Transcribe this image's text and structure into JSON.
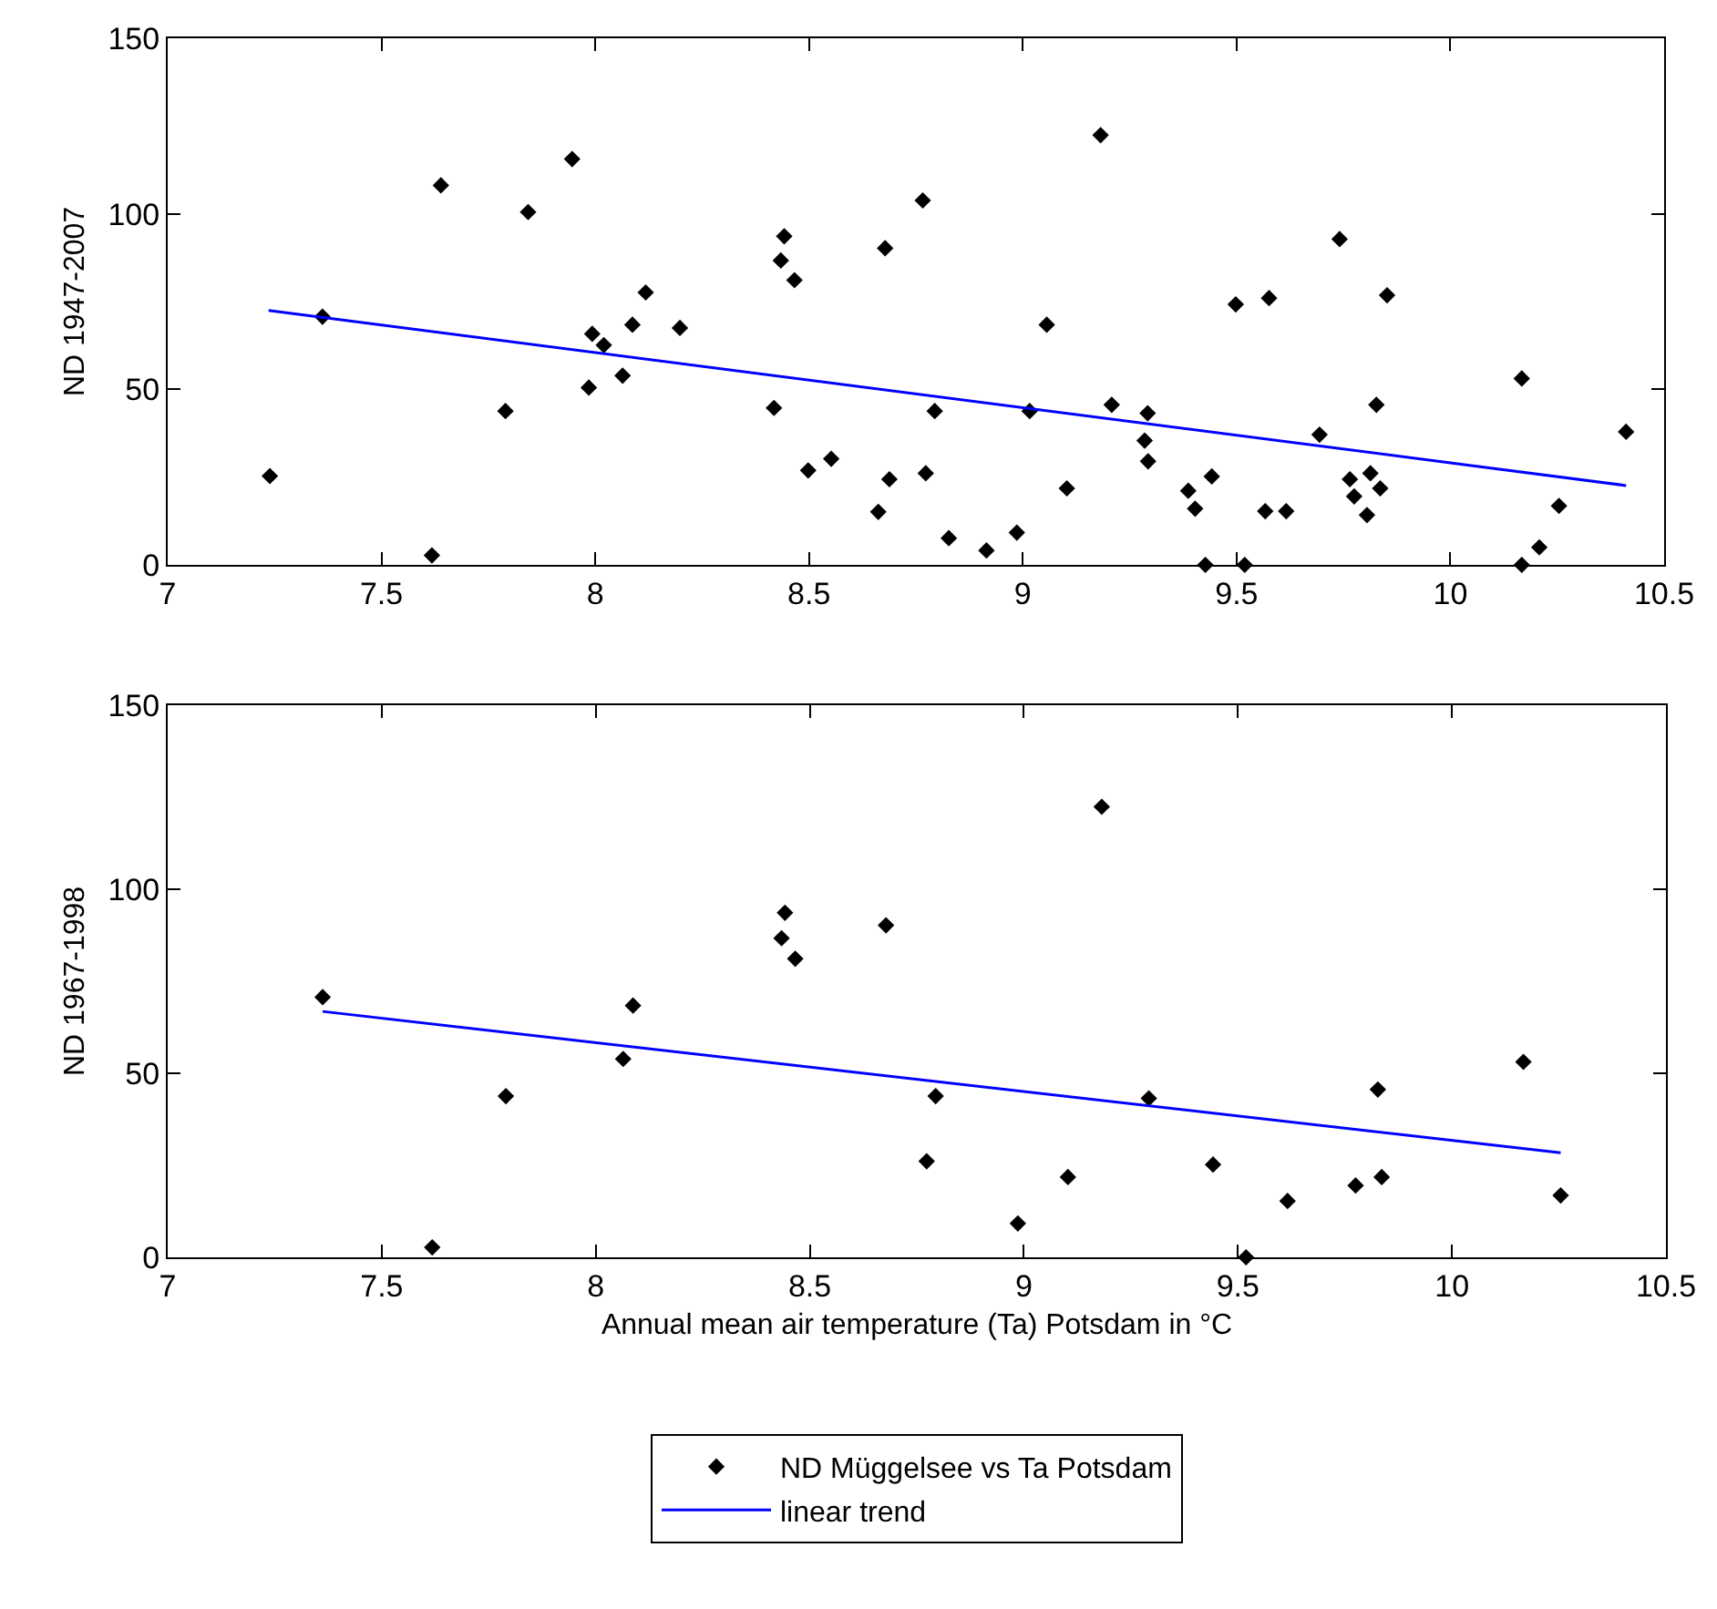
{
  "chart_data": [
    {
      "type": "scatter",
      "ylabel": "ND 1947-2007",
      "xlim": [
        7,
        10.5
      ],
      "xticks": [
        7,
        7.5,
        8,
        8.5,
        9,
        9.5,
        10,
        10.5
      ],
      "ylim": [
        0,
        150
      ],
      "yticks": [
        0,
        50,
        100,
        150
      ],
      "grid": false,
      "series": [
        {
          "marker": "diamond",
          "color": "#000000",
          "x": [
            7.239,
            7.362,
            7.639,
            7.618,
            7.79,
            7.843,
            7.946,
            7.993,
            7.985,
            8.02,
            8.064,
            8.087,
            8.118,
            8.198,
            8.418,
            8.434,
            8.442,
            8.466,
            8.498,
            8.552,
            8.662,
            8.678,
            8.688,
            8.766,
            8.794,
            8.773,
            8.827,
            8.915,
            8.986,
            9.016,
            9.056,
            9.103,
            9.182,
            9.208,
            9.292,
            9.285,
            9.293,
            9.387,
            9.403,
            9.427,
            9.442,
            9.498,
            9.519,
            9.567,
            9.576,
            9.616,
            9.694,
            9.741,
            9.765,
            9.775,
            9.813,
            9.805,
            9.827,
            9.836,
            9.852,
            10.167,
            10.167,
            10.208,
            10.254,
            10.411
          ],
          "values": [
            25.3,
            70.7,
            108.1,
            2.7,
            43.8,
            100.5,
            115.6,
            65.8,
            50.5,
            62.6,
            53.9,
            68.4,
            77.6,
            67.5,
            44.7,
            86.7,
            93.6,
            81.1,
            26.9,
            30.2,
            15.1,
            90.2,
            24.4,
            103.8,
            43.8,
            26.1,
            7.6,
            4.1,
            9.2,
            43.8,
            68.4,
            21.8,
            122.4,
            45.6,
            43.2,
            35.4,
            29.5,
            21.1,
            16.0,
            0,
            25.2,
            74.2,
            0,
            15.3,
            76.0,
            15.3,
            37.1,
            92.8,
            24.4,
            19.5,
            26.1,
            14.2,
            45.6,
            21.8,
            76.8,
            53.1,
            0,
            5.0,
            16.8,
            37.9
          ]
        },
        {
          "type": "line",
          "marker": "none",
          "color": "#0000ff",
          "x": [
            7.236,
            10.411
          ],
          "values": [
            72.5,
            22.6
          ]
        }
      ]
    },
    {
      "type": "scatter",
      "ylabel": "ND 1967-1998",
      "xlabel": "Annual mean air temperature (Ta) Potsdam in °C",
      "xlim": [
        7,
        10.5
      ],
      "xticks": [
        7,
        7.5,
        8,
        8.5,
        9,
        9.5,
        10,
        10.5
      ],
      "ylim": [
        0,
        150
      ],
      "yticks": [
        0,
        50,
        100,
        150
      ],
      "grid": false,
      "legend": "bottom",
      "series": [
        {
          "name": "ND Müggelsee vs Ta Potsdam",
          "marker": "diamond",
          "color": "#000000",
          "x": [
            7.362,
            7.618,
            7.79,
            8.064,
            8.087,
            8.434,
            8.442,
            8.466,
            8.678,
            8.773,
            8.794,
            8.986,
            9.103,
            9.182,
            9.292,
            9.442,
            9.519,
            9.616,
            9.775,
            9.836,
            9.827,
            10.167,
            10.254
          ],
          "values": [
            70.7,
            2.7,
            43.8,
            53.9,
            68.4,
            86.7,
            93.6,
            81.1,
            90.2,
            26.1,
            43.8,
            9.2,
            21.8,
            122.4,
            43.2,
            25.2,
            0,
            15.3,
            19.5,
            21.8,
            45.6,
            53.1,
            16.8
          ]
        },
        {
          "name": "linear trend",
          "type": "line",
          "marker": "none",
          "color": "#0000ff",
          "x": [
            7.362,
            10.254
          ],
          "values": [
            66.8,
            28.4
          ]
        }
      ]
    }
  ]
}
